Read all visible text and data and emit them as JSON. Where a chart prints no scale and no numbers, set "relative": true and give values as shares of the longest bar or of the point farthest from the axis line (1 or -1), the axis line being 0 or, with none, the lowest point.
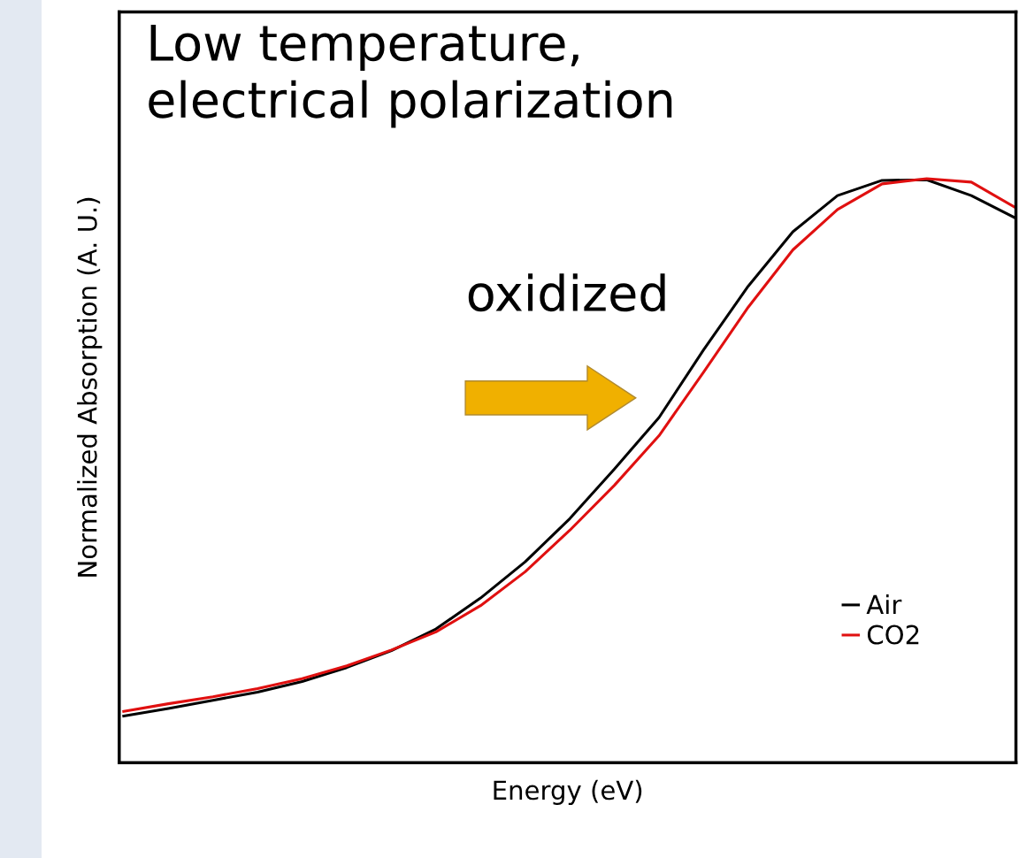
{
  "chart_data": {
    "type": "line",
    "relative": true,
    "xlabel": "Energy (eV)",
    "ylabel": "Normalized Absorption (A. U.)",
    "tick_labels": false,
    "grid": false,
    "legend": "bottom right",
    "marker": "none",
    "line_style": "solid",
    "annotations": [
      "Low temperature,\nelectrical polarization",
      "oxidized"
    ],
    "categories": [
      null,
      null,
      null,
      null,
      null,
      null,
      null,
      null,
      null,
      null,
      null,
      null,
      null,
      null,
      null,
      null,
      null,
      null,
      null,
      null,
      null
    ],
    "series": [
      {
        "name": "Air",
        "color": "#000000",
        "values": [
          0.08,
          0.093,
          0.107,
          0.121,
          0.139,
          0.163,
          0.192,
          0.229,
          0.282,
          0.344,
          0.418,
          0.503,
          0.591,
          0.707,
          0.816,
          0.909,
          0.971,
          0.997,
          0.998,
          0.971,
          0.932
        ]
      },
      {
        "name": "CO2",
        "color": "#e01010",
        "values": [
          0.088,
          0.101,
          0.113,
          0.127,
          0.144,
          0.166,
          0.193,
          0.224,
          0.269,
          0.327,
          0.398,
          0.475,
          0.56,
          0.669,
          0.78,
          0.878,
          0.947,
          0.991,
          1.0,
          0.994,
          0.95
        ]
      }
    ]
  }
}
